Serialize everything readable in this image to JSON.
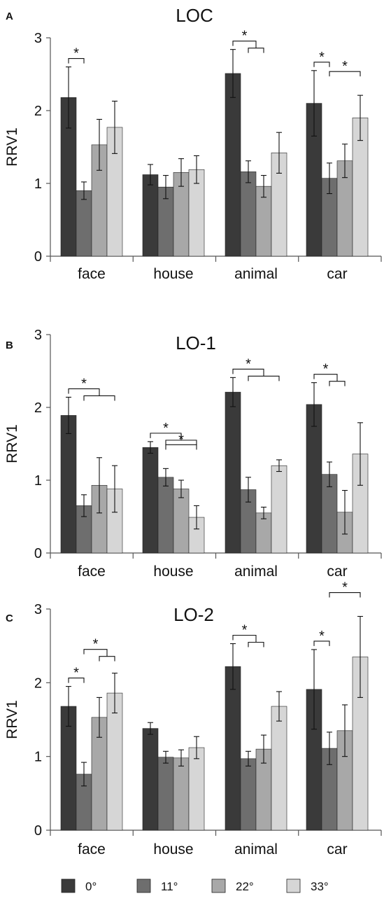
{
  "chart_data": [
    {
      "type": "bar",
      "panel_letter": "A",
      "title": "LOC",
      "ylabel": "RRV1",
      "xlabel": "",
      "ylim": [
        0,
        3
      ],
      "yticks": [
        0,
        1,
        2,
        3
      ],
      "grid": false,
      "categories": [
        "face",
        "house",
        "animal",
        "car"
      ],
      "series": [
        {
          "name": "0°",
          "values": [
            2.18,
            1.12,
            2.51,
            2.1
          ],
          "error": [
            0.42,
            0.14,
            0.33,
            0.45
          ]
        },
        {
          "name": "11°",
          "values": [
            0.9,
            0.95,
            1.16,
            1.07
          ],
          "error": [
            0.12,
            0.16,
            0.15,
            0.21
          ]
        },
        {
          "name": "22°",
          "values": [
            1.53,
            1.15,
            0.96,
            1.31
          ],
          "error": [
            0.35,
            0.19,
            0.15,
            0.23
          ]
        },
        {
          "name": "33°",
          "values": [
            1.77,
            1.19,
            1.42,
            1.9
          ],
          "error": [
            0.36,
            0.19,
            0.28,
            0.31
          ]
        }
      ],
      "significance": [
        {
          "category": "face",
          "from": 0,
          "to": [
            1
          ],
          "label": "*"
        },
        {
          "category": "animal",
          "from": 0,
          "to": [
            1,
            2
          ],
          "label": "*"
        },
        {
          "category": "car",
          "from": 0,
          "to": [
            1
          ],
          "label": "*"
        },
        {
          "category": "car",
          "from": 1,
          "to": [
            3
          ],
          "label": "*"
        }
      ]
    },
    {
      "type": "bar",
      "panel_letter": "B",
      "title": "LO-1",
      "ylabel": "RRV1",
      "xlabel": "",
      "ylim": [
        0,
        3
      ],
      "yticks": [
        0,
        1,
        2,
        3
      ],
      "grid": false,
      "categories": [
        "face",
        "house",
        "animal",
        "car"
      ],
      "series": [
        {
          "name": "0°",
          "values": [
            1.89,
            1.45,
            2.21,
            2.04
          ],
          "error": [
            0.25,
            0.08,
            0.2,
            0.3
          ]
        },
        {
          "name": "11°",
          "values": [
            0.65,
            1.04,
            0.87,
            1.08
          ],
          "error": [
            0.15,
            0.12,
            0.17,
            0.17
          ]
        },
        {
          "name": "22°",
          "values": [
            0.93,
            0.88,
            0.55,
            0.56
          ],
          "error": [
            0.38,
            0.12,
            0.08,
            0.3
          ]
        },
        {
          "name": "33°",
          "values": [
            0.88,
            0.49,
            1.2,
            1.36
          ],
          "error": [
            0.32,
            0.16,
            0.08,
            0.43
          ]
        }
      ],
      "significance": [
        {
          "category": "face",
          "from": 0,
          "to": [
            1,
            2,
            3
          ],
          "label": "*"
        },
        {
          "category": "house",
          "from": 0,
          "to": [
            1,
            2,
            3
          ],
          "label": "*"
        },
        {
          "category": "house",
          "from": 1,
          "to": [
            3
          ],
          "label": "*"
        },
        {
          "category": "animal",
          "from": 0,
          "to": [
            1,
            2,
            3
          ],
          "label": "*"
        },
        {
          "category": "car",
          "from": 0,
          "to": [
            1,
            2
          ],
          "label": "*"
        }
      ]
    },
    {
      "type": "bar",
      "panel_letter": "C",
      "title": "LO-2",
      "ylabel": "RRV1",
      "xlabel": "",
      "ylim": [
        0,
        3
      ],
      "yticks": [
        0,
        1,
        2,
        3
      ],
      "grid": false,
      "categories": [
        "face",
        "house",
        "animal",
        "car"
      ],
      "series": [
        {
          "name": "0°",
          "values": [
            1.68,
            1.38,
            2.22,
            1.91
          ],
          "error": [
            0.27,
            0.08,
            0.31,
            0.54
          ]
        },
        {
          "name": "11°",
          "values": [
            0.76,
            0.99,
            0.97,
            1.11
          ],
          "error": [
            0.16,
            0.08,
            0.1,
            0.22
          ]
        },
        {
          "name": "22°",
          "values": [
            1.53,
            0.98,
            1.1,
            1.35
          ],
          "error": [
            0.27,
            0.11,
            0.19,
            0.35
          ]
        },
        {
          "name": "33°",
          "values": [
            1.86,
            1.12,
            1.68,
            2.35
          ],
          "error": [
            0.27,
            0.15,
            0.2,
            0.55
          ]
        }
      ],
      "significance": [
        {
          "category": "face",
          "from": 0,
          "to": [
            1
          ],
          "label": "*"
        },
        {
          "category": "face",
          "from": 1,
          "to": [
            2,
            3
          ],
          "label": "*"
        },
        {
          "category": "animal",
          "from": 0,
          "to": [
            1,
            2
          ],
          "label": "*"
        },
        {
          "category": "car",
          "from": 0,
          "to": [
            1
          ],
          "label": "*"
        },
        {
          "category": "car",
          "from": 1,
          "to": [
            3
          ],
          "label": "*"
        }
      ]
    }
  ],
  "legend": {
    "placement": "bottom",
    "items": [
      {
        "label": "0°",
        "color": "#3a3a3a"
      },
      {
        "label": "11°",
        "color": "#6e6e6e"
      },
      {
        "label": "22°",
        "color": "#a8a8a8"
      },
      {
        "label": "33°",
        "color": "#d6d6d6"
      }
    ]
  }
}
